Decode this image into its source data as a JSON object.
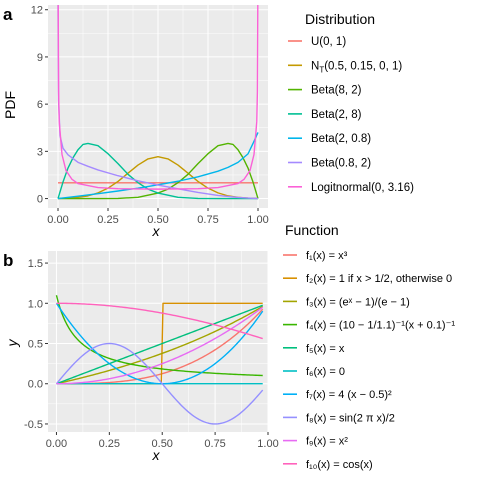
{
  "chart_data": [
    {
      "type": "line",
      "panel_label": "a",
      "xlabel": "x",
      "ylabel": "PDF",
      "xlim": [
        -0.05,
        1.05
      ],
      "ylim": [
        -0.6,
        12.3
      ],
      "x_ticks": [
        0,
        0.25,
        0.5,
        0.75,
        1
      ],
      "x_tick_labels": [
        "0.00",
        "0.25",
        "0.50",
        "0.75",
        "1.00"
      ],
      "y_ticks": [
        0,
        3,
        6,
        9,
        12
      ],
      "y_tick_labels": [
        "0",
        "3",
        "6",
        "9",
        "12"
      ],
      "grid": false,
      "legend_title": "Distribution",
      "legend_position": "right",
      "series": [
        {
          "name": "U(0, 1)",
          "color": "#F8766D",
          "x": [
            0,
            0.1,
            0.2,
            0.3,
            0.4,
            0.5,
            0.6,
            0.7,
            0.8,
            0.9,
            1.0
          ],
          "y": [
            1,
            1,
            1,
            1,
            1,
            1,
            1,
            1,
            1,
            1,
            1
          ]
        },
        {
          "name_main": "N",
          "name_sub": "T",
          "name_rest": "(0.5, 0.15, 0, 1)",
          "color": "#C49A00",
          "x": [
            0,
            0.05,
            0.1,
            0.15,
            0.2,
            0.25,
            0.3,
            0.35,
            0.4,
            0.45,
            0.5,
            0.55,
            0.6,
            0.65,
            0.7,
            0.75,
            0.8,
            0.85,
            0.9,
            0.95,
            1.0
          ],
          "y": [
            0.01,
            0.03,
            0.08,
            0.17,
            0.36,
            0.66,
            1.09,
            1.61,
            2.13,
            2.52,
            2.66,
            2.52,
            2.13,
            1.61,
            1.09,
            0.66,
            0.36,
            0.17,
            0.08,
            0.03,
            0.01
          ]
        },
        {
          "name": "Beta(8, 2)",
          "color": "#53B400",
          "x": [
            0,
            0.1,
            0.2,
            0.3,
            0.4,
            0.5,
            0.55,
            0.6,
            0.65,
            0.7,
            0.75,
            0.8,
            0.85,
            0.875,
            0.9,
            0.925,
            0.95,
            0.975,
            1.0
          ],
          "y": [
            0,
            0,
            0.0,
            0.01,
            0.08,
            0.35,
            0.6,
            1.01,
            1.54,
            2.22,
            2.85,
            3.36,
            3.5,
            3.44,
            3.1,
            2.59,
            1.94,
            1.05,
            0
          ]
        },
        {
          "name": "Beta(2, 8)",
          "color": "#00C094",
          "x": [
            0,
            0.025,
            0.05,
            0.075,
            0.1,
            0.125,
            0.15,
            0.2,
            0.25,
            0.3,
            0.35,
            0.4,
            0.45,
            0.5,
            0.6,
            0.7,
            0.8,
            0.9,
            1.0
          ],
          "y": [
            0,
            1.05,
            1.94,
            2.59,
            3.1,
            3.44,
            3.5,
            3.36,
            2.85,
            2.22,
            1.54,
            1.01,
            0.6,
            0.35,
            0.08,
            0.01,
            0,
            0,
            0
          ]
        },
        {
          "name": "Beta(2, 0.8)",
          "color": "#00B6EB",
          "x": [
            0,
            0.1,
            0.2,
            0.3,
            0.4,
            0.5,
            0.6,
            0.7,
            0.8,
            0.85,
            0.9,
            0.95,
            0.975,
            1.0
          ],
          "y": [
            0,
            0.15,
            0.31,
            0.48,
            0.66,
            0.87,
            1.1,
            1.38,
            1.74,
            1.98,
            2.3,
            2.84,
            3.5,
            4.2
          ]
        },
        {
          "name": "Beta(0.8, 2)",
          "color": "#A58AFF",
          "x": [
            0,
            0.003,
            0.01,
            0.025,
            0.05,
            0.1,
            0.15,
            0.2,
            0.3,
            0.4,
            0.5,
            0.6,
            0.7,
            0.8,
            0.9,
            1.0
          ],
          "y": [
            12.3,
            6.2,
            4.0,
            3.2,
            2.78,
            2.3,
            2.05,
            1.82,
            1.45,
            1.13,
            0.86,
            0.62,
            0.39,
            0.2,
            0.07,
            0
          ]
        },
        {
          "name": "Logitnormal(0, 3.16)",
          "color": "#FB61D7",
          "x": [
            0.001,
            0.003,
            0.006,
            0.01,
            0.02,
            0.04,
            0.07,
            0.1,
            0.2,
            0.3,
            0.4,
            0.5,
            0.6,
            0.7,
            0.8,
            0.9,
            0.93,
            0.96,
            0.98,
            0.99,
            0.994,
            0.997,
            0.999
          ],
          "y": [
            12.3,
            6.8,
            4.9,
            4.3,
            2.8,
            1.78,
            1.22,
            0.95,
            0.7,
            0.63,
            0.61,
            0.6,
            0.61,
            0.63,
            0.7,
            0.95,
            1.22,
            1.78,
            2.8,
            4.3,
            4.9,
            6.8,
            12.3
          ]
        }
      ]
    },
    {
      "type": "line",
      "panel_label": "b",
      "xlabel": "x",
      "ylabel": "y",
      "xlim": [
        -0.04,
        1.0
      ],
      "ylim": [
        -0.6,
        1.65
      ],
      "x_ticks": [
        0,
        0.25,
        0.5,
        0.75,
        1
      ],
      "x_tick_labels": [
        "0.00",
        "0.25",
        "0.50",
        "0.75",
        "1.00"
      ],
      "y_ticks": [
        -0.5,
        0,
        0.5,
        1,
        1.5
      ],
      "y_tick_labels": [
        "-0.5",
        "0.0",
        "0.5",
        "1.0",
        "1.5"
      ],
      "grid": false,
      "legend_title": "Function",
      "legend_position": "right",
      "series": [
        {
          "fn": 1,
          "label": "f₁(x) = x³",
          "color": "#F8766D"
        },
        {
          "fn": 2,
          "label": "f₂(x) = 1 if x > 1/2, otherwise 0",
          "color": "#D89000"
        },
        {
          "fn": 3,
          "label": "f₃(x) = (eˣ − 1)/(e − 1)",
          "color": "#A3A500"
        },
        {
          "fn": 4,
          "label": "f₄(x) = (10 − 1/1.1)⁻¹(x + 0.1)⁻¹",
          "color": "#39B600"
        },
        {
          "fn": 5,
          "label": "f₅(x) = x",
          "color": "#00BF7D"
        },
        {
          "fn": 6,
          "label": "f₆(x) = 0",
          "color": "#00BFC4"
        },
        {
          "fn": 7,
          "label": "f₇(x) = 4  (x − 0.5)²",
          "color": "#00B0F6"
        },
        {
          "fn": 8,
          "label": "f₈(x) = sin(2  π  x)/2",
          "color": "#9590FF"
        },
        {
          "fn": 9,
          "label": "f₉(x) = x²",
          "color": "#E76BF3"
        },
        {
          "fn": 10,
          "label": "f₁₀(x) = cos(x)",
          "color": "#FF62BC"
        }
      ],
      "x_range": [
        0,
        0.975
      ]
    }
  ]
}
